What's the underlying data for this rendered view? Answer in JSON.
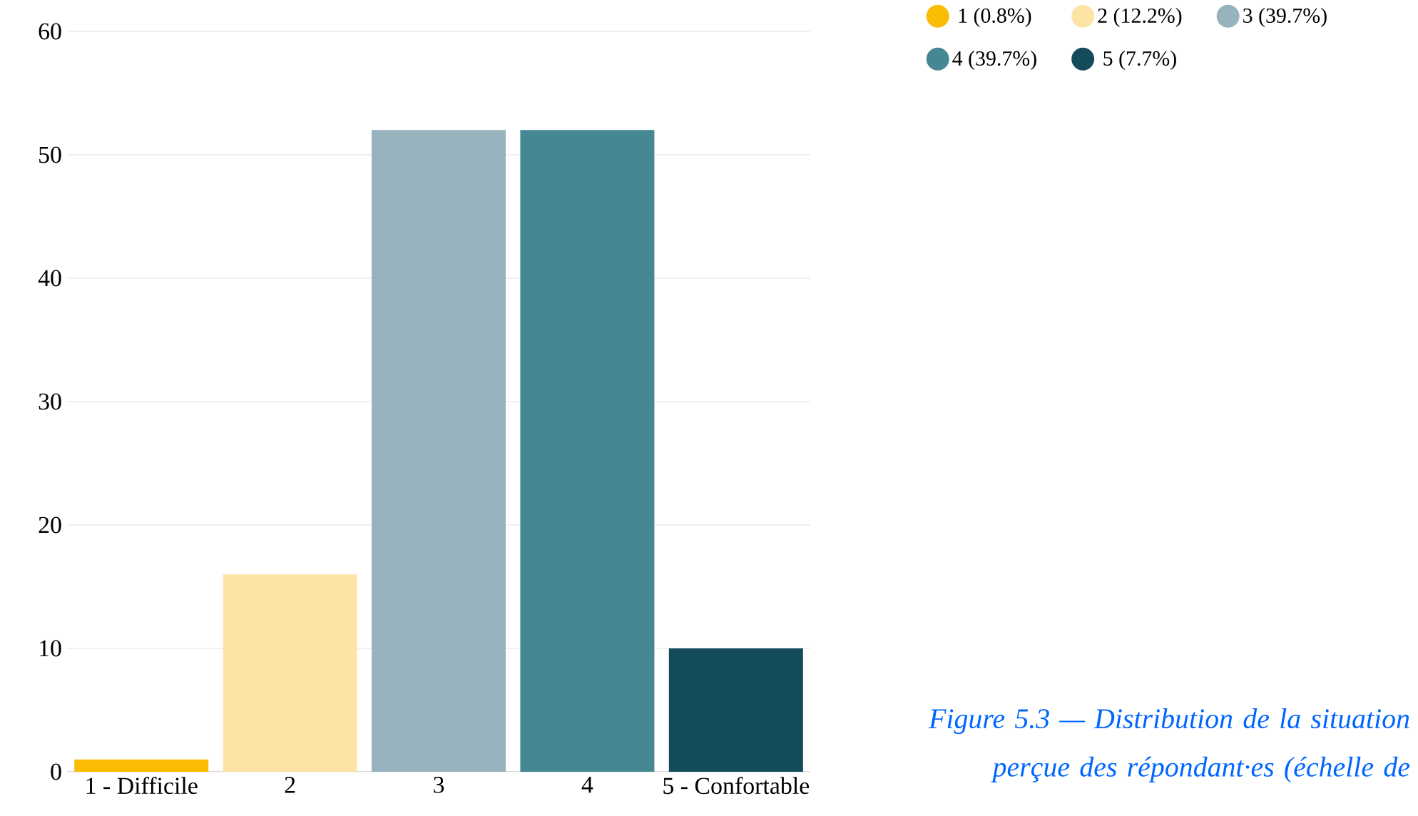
{
  "chart_data": {
    "type": "bar",
    "categories": [
      "1 - Difficile",
      "2",
      "3",
      "4",
      "5 - Confortable"
    ],
    "series": [
      {
        "name": "1 (0.8%)",
        "color": "#fbbc04",
        "values": [
          1,
          null,
          null,
          null,
          null
        ]
      },
      {
        "name": "2 (12.2%)",
        "color": "#fde4a5",
        "values": [
          null,
          16,
          null,
          null,
          null
        ]
      },
      {
        "name": "3 (39.7%)",
        "color": "#97b3bd",
        "values": [
          null,
          null,
          52,
          null,
          null
        ]
      },
      {
        "name": "4 (39.7%)",
        "color": "#468794",
        "values": [
          null,
          null,
          null,
          52,
          null
        ]
      },
      {
        "name": "5 (7.7%)",
        "color": "#134b5a",
        "values": [
          null,
          null,
          null,
          null,
          10
        ]
      }
    ],
    "ylim": [
      0,
      60
    ],
    "yticks": [
      0,
      10,
      20,
      30,
      40,
      50,
      60
    ],
    "grid": "y",
    "legend": "top right",
    "annotations": [
      "Figure 5.3 — Distribution de la situation perçue des répondant·es (échelle de"
    ]
  }
}
